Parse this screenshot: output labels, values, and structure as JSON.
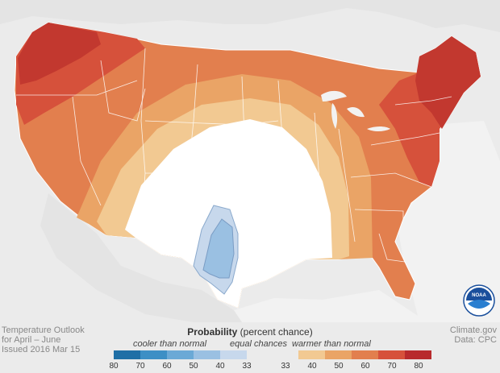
{
  "title_block": {
    "line1": "Temperature Outlook",
    "line2": "for April – June",
    "line3": "Issued 2016 Mar 15"
  },
  "credit_block": {
    "line1": "Climate.gov",
    "line2": "Data: CPC"
  },
  "legend": {
    "title_bold": "Probability",
    "title_rest": " (percent chance)",
    "cooler_label": "cooler than normal",
    "equal_label": "equal chances",
    "warmer_label": "warmer than normal",
    "cooler_ticks": [
      "80",
      "70",
      "60",
      "50",
      "40",
      "33"
    ],
    "warmer_ticks": [
      "33",
      "40",
      "50",
      "60",
      "70",
      "80"
    ],
    "cooler_colors": [
      "#1f6fa6",
      "#3d8fc5",
      "#6ba9d6",
      "#9ac0e2",
      "#c7d8ec"
    ],
    "warmer_colors": [
      "#f2c992",
      "#eaa466",
      "#e27f4e",
      "#d6513b",
      "#b82a2c"
    ]
  },
  "logo": {
    "text": "NOAA",
    "icon": "noaa-logo-icon"
  }
}
